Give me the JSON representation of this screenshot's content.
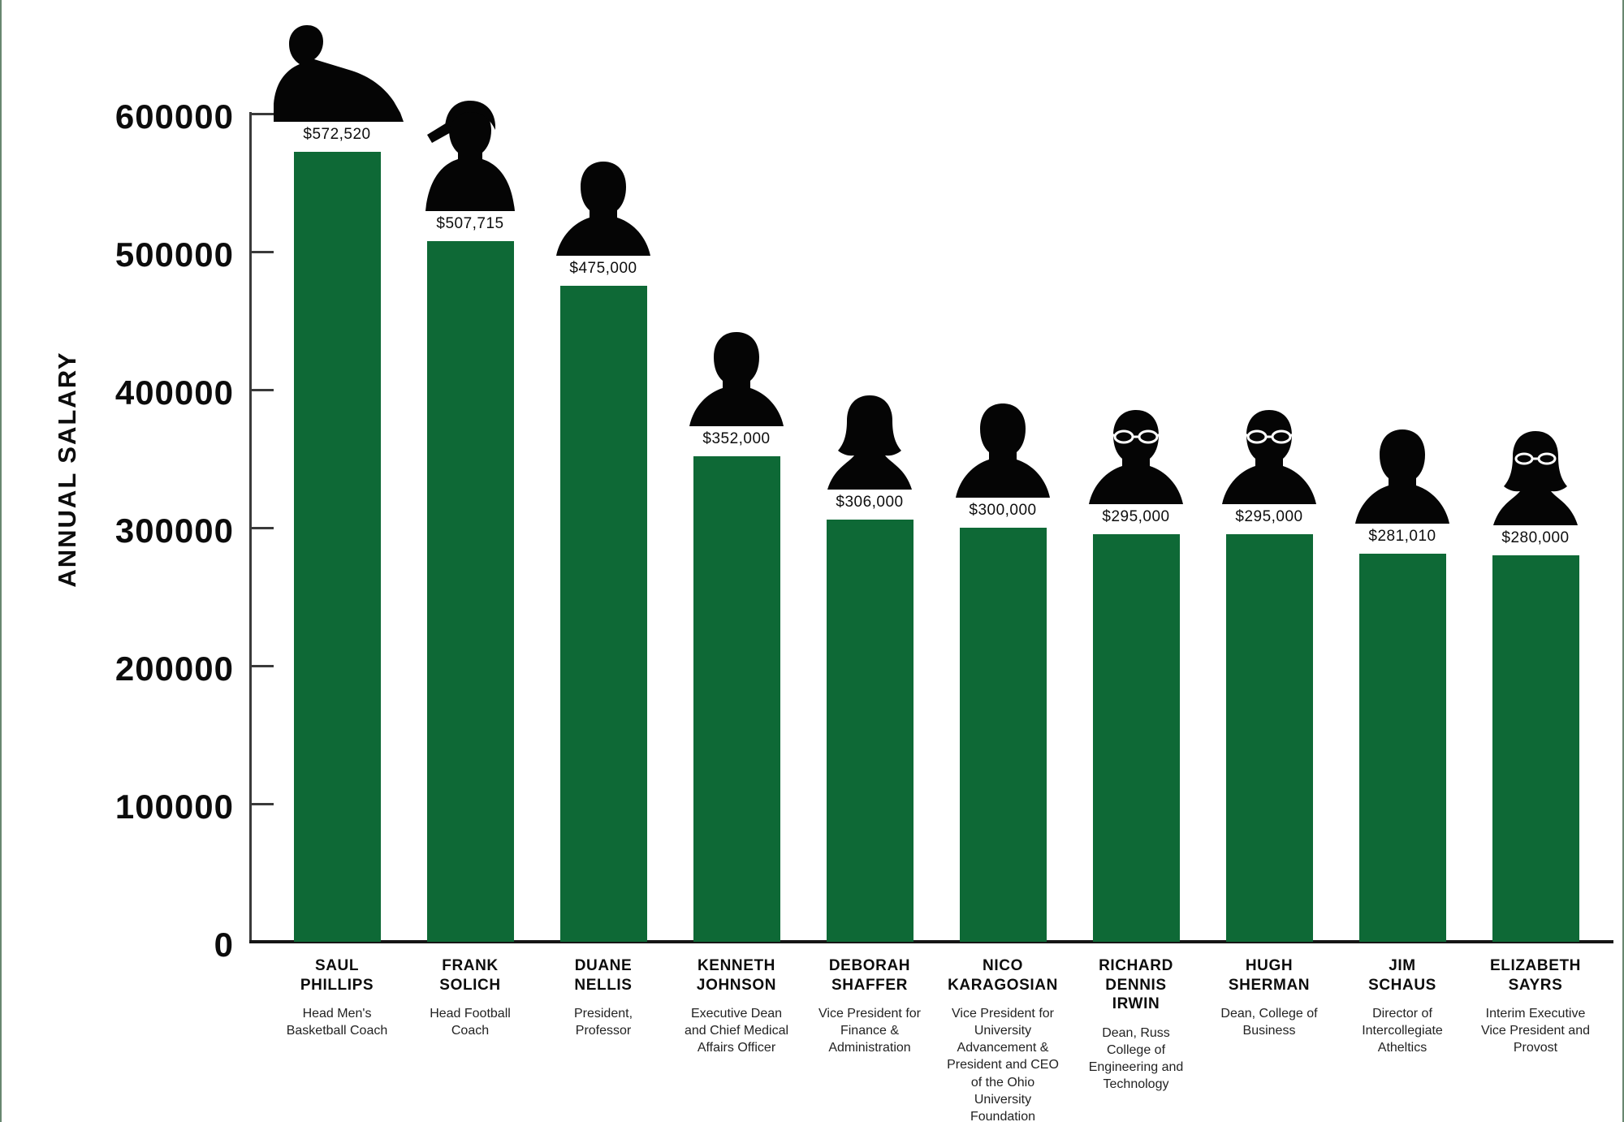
{
  "chart": {
    "y_axis_title": "ANNUAL SALARY"
  },
  "chart_data": {
    "type": "bar",
    "title": "",
    "xlabel": "",
    "ylabel": "ANNUAL SALARY",
    "ylim": [
      0,
      600000
    ],
    "y_ticks": [
      0,
      100000,
      200000,
      300000,
      400000,
      500000,
      600000
    ],
    "y_tick_labels": [
      "0",
      "100000",
      "200000",
      "300000",
      "400000",
      "500000",
      "600000"
    ],
    "grid": "off",
    "legend": "none",
    "bar_color": "#0e6936",
    "silhouette_color": "#050505",
    "categories": [
      "SAUL PHILLIPS",
      "FRANK SOLICH",
      "DUANE NELLIS",
      "KENNETH JOHNSON",
      "DEBORAH SHAFFER",
      "NICO KARAGOSIAN",
      "RICHARD DENNIS IRWIN",
      "HUGH SHERMAN",
      "JIM SCHAUS",
      "ELIZABETH SAYRS"
    ],
    "values": [
      572520,
      507715,
      475000,
      352000,
      306000,
      300000,
      295000,
      295000,
      281010,
      280000
    ],
    "people": [
      {
        "name": "SAUL PHILLIPS",
        "title": "Head Men's Basketball Coach",
        "salary": 572520,
        "salary_label": "$572,520",
        "silhouette": "coach-leaning-silhouette-icon"
      },
      {
        "name": "FRANK SOLICH",
        "title": "Head Football Coach",
        "salary": 507715,
        "salary_label": "$507,715",
        "silhouette": "man-cap-silhouette-icon"
      },
      {
        "name": "DUANE NELLIS",
        "title": "President, Professor",
        "salary": 475000,
        "salary_label": "$475,000",
        "silhouette": "man-silhouette-icon"
      },
      {
        "name": "KENNETH JOHNSON",
        "title": "Executive Dean and Chief Medical Affairs Officer",
        "salary": 352000,
        "salary_label": "$352,000",
        "silhouette": "man-silhouette-icon"
      },
      {
        "name": "DEBORAH SHAFFER",
        "title": "Vice President for Finance & Administration",
        "salary": 306000,
        "salary_label": "$306,000",
        "silhouette": "woman-silhouette-icon"
      },
      {
        "name": "NICO KARAGOSIAN",
        "title": "Vice President for University Advancement & President and CEO of the Ohio University Foundation",
        "salary": 300000,
        "salary_label": "$300,000",
        "silhouette": "man-silhouette-icon"
      },
      {
        "name": "RICHARD DENNIS IRWIN",
        "title": "Dean, Russ College of Engineering and Technology",
        "salary": 295000,
        "salary_label": "$295,000",
        "silhouette": "man-glasses-silhouette-icon"
      },
      {
        "name": "HUGH SHERMAN",
        "title": "Dean, College of Business",
        "salary": 295000,
        "salary_label": "$295,000",
        "silhouette": "man-glasses-silhouette-icon"
      },
      {
        "name": "JIM SCHAUS",
        "title": "Director of Intercollegiate Atheltics",
        "salary": 281010,
        "salary_label": "$281,010",
        "silhouette": "man-silhouette-icon"
      },
      {
        "name": "ELIZABETH SAYRS",
        "title": "Interim Executive Vice President and Provost",
        "salary": 280000,
        "salary_label": "$280,000",
        "silhouette": "woman-glasses-silhouette-icon"
      }
    ]
  }
}
